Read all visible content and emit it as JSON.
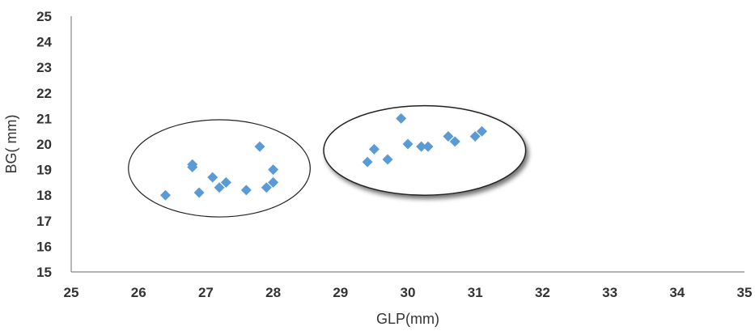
{
  "chart_data": {
    "type": "scatter",
    "xlabel": "GLP(mm)",
    "ylabel": "BG( mm)",
    "xlim": [
      25,
      35
    ],
    "ylim": [
      15,
      25
    ],
    "xticks": [
      25,
      26,
      27,
      28,
      29,
      30,
      31,
      32,
      33,
      34,
      35
    ],
    "yticks": [
      15,
      16,
      17,
      18,
      19,
      20,
      21,
      22,
      23,
      24,
      25
    ],
    "grid": false,
    "legend": "none",
    "marker": "diamond",
    "marker_color": "#5B9BD5",
    "series": [
      {
        "points": [
          {
            "x": 26.4,
            "y": 18.0
          },
          {
            "x": 26.8,
            "y": 19.2
          },
          {
            "x": 26.8,
            "y": 19.1
          },
          {
            "x": 26.9,
            "y": 18.1
          },
          {
            "x": 27.1,
            "y": 18.7
          },
          {
            "x": 27.2,
            "y": 18.3
          },
          {
            "x": 27.3,
            "y": 18.5
          },
          {
            "x": 27.6,
            "y": 18.2
          },
          {
            "x": 27.8,
            "y": 19.9
          },
          {
            "x": 27.9,
            "y": 18.3
          },
          {
            "x": 28.0,
            "y": 18.5
          },
          {
            "x": 28.0,
            "y": 19.0
          },
          {
            "x": 29.4,
            "y": 19.3
          },
          {
            "x": 29.5,
            "y": 19.8
          },
          {
            "x": 29.7,
            "y": 19.4
          },
          {
            "x": 29.9,
            "y": 21.0
          },
          {
            "x": 30.0,
            "y": 20.0
          },
          {
            "x": 30.2,
            "y": 19.9
          },
          {
            "x": 30.3,
            "y": 19.9
          },
          {
            "x": 30.6,
            "y": 20.3
          },
          {
            "x": 30.7,
            "y": 20.1
          },
          {
            "x": 31.0,
            "y": 20.3
          },
          {
            "x": 31.1,
            "y": 20.5
          }
        ]
      }
    ],
    "annotations": [
      {
        "type": "ellipse",
        "cx": 27.2,
        "cy": 19.05,
        "rx": 1.35,
        "ry": 1.9,
        "shadow": false
      },
      {
        "type": "ellipse",
        "cx": 30.25,
        "cy": 19.75,
        "rx": 1.5,
        "ry": 1.75,
        "shadow": true
      }
    ]
  }
}
